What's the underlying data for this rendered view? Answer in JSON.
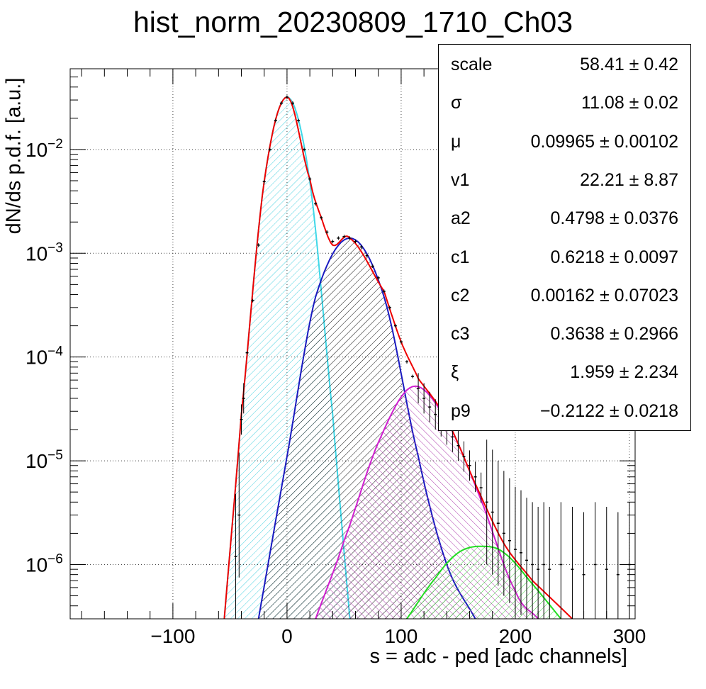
{
  "chart_data": {
    "type": "histogram-fit",
    "title": "hist_norm_20230809_1710_Ch03",
    "xlabel": "s = adc - ped [adc channels]",
    "ylabel": "dN/ds p.d.f. [a.u.]",
    "xlim": [
      -190,
      305
    ],
    "ylim": [
      3e-07,
      0.06
    ],
    "yscale": "log",
    "grid": true,
    "legend_position": "top-right",
    "x_ticks": [
      -100,
      0,
      100,
      200,
      300
    ],
    "x_tick_labels": [
      "−100",
      "0",
      "100",
      "200",
      "300"
    ],
    "y_ticks": [
      {
        "base": "10",
        "exp": "−6",
        "value": 1e-06
      },
      {
        "base": "10",
        "exp": "−5",
        "value": 1e-05
      },
      {
        "base": "10",
        "exp": "−4",
        "value": 0.0001
      },
      {
        "base": "10",
        "exp": "−3",
        "value": 0.001
      },
      {
        "base": "10",
        "exp": "−2",
        "value": 0.01
      }
    ],
    "components": [
      {
        "color": "#3fd8e8",
        "fill_color": "#4ed2e0",
        "hatch": "forward",
        "x": [
          -55,
          -40,
          -20,
          0,
          20,
          40,
          55
        ],
        "y": [
          3e-07,
          2.8e-05,
          0.0049,
          0.032,
          0.0049,
          2.8e-05,
          3e-07
        ]
      },
      {
        "color": "#1a1ac0",
        "fill_color": "#111111",
        "hatch": "forward",
        "x": [
          -25,
          0,
          25,
          55,
          85,
          115,
          140,
          165
        ],
        "y": [
          3e-07,
          1.1e-05,
          0.00038,
          0.0014,
          0.00038,
          1.1e-05,
          1e-06,
          3e-07
        ]
      },
      {
        "color": "#d020d0",
        "fill_color": "#b040b0",
        "hatch": "backward",
        "x": [
          25,
          50,
          80,
          110,
          140,
          170,
          200,
          220
        ],
        "y": [
          3e-07,
          1.7e-06,
          1.5e-05,
          5.2e-05,
          2.4e-05,
          4.2e-06,
          5.6e-07,
          3e-07
        ]
      },
      {
        "color": "#22dd22",
        "fill_color": "#40d040",
        "hatch": "forward",
        "x": [
          105,
          130,
          150,
          170,
          190,
          215,
          240
        ],
        "y": [
          3e-07,
          7.4e-07,
          1.3e-06,
          1.5e-06,
          1.3e-06,
          6.5e-07,
          3e-07
        ]
      },
      {
        "color": "#ee0000",
        "fill_color": "none",
        "hatch": "none",
        "x": [
          -55,
          -40,
          -20,
          0,
          20,
          30,
          40,
          55,
          85,
          100,
          115,
          140,
          165,
          190,
          215,
          250
        ],
        "y": [
          3e-07,
          2.8e-05,
          0.0049,
          0.032,
          0.0052,
          0.0022,
          0.0012,
          0.0014,
          0.00043,
          0.00014,
          6.2e-05,
          2.5e-05,
          6e-06,
          1.6e-06,
          7e-07,
          3e-07
        ]
      }
    ],
    "histogram": {
      "color": "#000000",
      "x": [
        -45,
        -42,
        -40,
        -38,
        -35,
        -30,
        -25,
        -20,
        -15,
        -10,
        -5,
        0,
        5,
        10,
        15,
        20,
        25,
        30,
        35,
        40,
        45,
        50,
        55,
        60,
        65,
        70,
        75,
        80,
        85,
        90,
        95,
        100,
        105,
        110,
        115,
        120,
        125,
        130,
        135,
        140,
        145,
        150,
        155,
        160,
        165,
        170,
        175,
        180,
        185,
        190,
        195,
        200,
        205,
        210,
        215,
        220,
        225,
        230,
        240,
        250,
        260,
        270,
        280,
        290,
        300
      ],
      "y": [
        1.2e-06,
        3e-06,
        2.5e-05,
        4e-05,
        0.00011,
        0.00035,
        0.0012,
        0.0049,
        0.01,
        0.019,
        0.028,
        0.032,
        0.028,
        0.019,
        0.01,
        0.0052,
        0.003,
        0.0022,
        0.0016,
        0.0013,
        0.0014,
        0.00145,
        0.0014,
        0.0013,
        0.00115,
        0.00095,
        0.00075,
        0.00058,
        0.00043,
        0.0003,
        0.0002,
        0.00014,
        9e-05,
        6.5e-05,
        5e-05,
        4e-05,
        3.3e-05,
        2.8e-05,
        2.4e-05,
        2e-05,
        1.7e-05,
        1.4e-05,
        1.1e-05,
        9e-06,
        7e-06,
        5.5e-06,
        4e-06,
        3.2e-06,
        2.5e-06,
        2e-06,
        1.7e-06,
        1.4e-06,
        1.3e-06,
        1.1e-06,
        1e-06,
        9e-07,
        1e-06,
        9e-07,
        1e-06,
        9e-07,
        8e-07,
        1e-06,
        9e-07,
        8e-07,
        1e-06
      ]
    }
  },
  "stats_box": {
    "rows": [
      {
        "name": "scale",
        "value": "58.41 ± 0.42"
      },
      {
        "name": "σ",
        "value": "11.08 ± 0.02"
      },
      {
        "name": "μ",
        "value": "0.09965 ± 0.00102"
      },
      {
        "name": "v1",
        "value": "22.21 ± 8.87"
      },
      {
        "name": "a2",
        "value": "0.4798 ± 0.0376"
      },
      {
        "name": "c1",
        "value": "0.6218 ± 0.0097"
      },
      {
        "name": "c2",
        "value": "0.00162 ± 0.07023"
      },
      {
        "name": "c3",
        "value": "0.3638 ± 0.2966"
      },
      {
        "name": "ξ",
        "value": "1.959 ± 2.234"
      },
      {
        "name": "p9",
        "value": "−0.2122 ± 0.0218"
      }
    ]
  }
}
